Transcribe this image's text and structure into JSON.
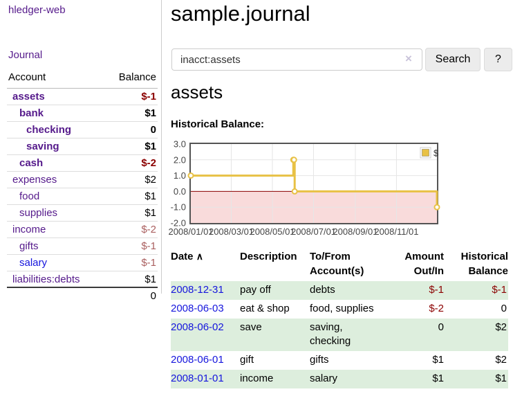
{
  "colors": {
    "brand_link": "#551a8b",
    "link_blue": "#1515dd",
    "negative_strong": "#8b0000",
    "negative_soft": "#aa5f5f",
    "row_shade": "#ddeedd",
    "chart_line": "#e8c145",
    "chart_zero_line": "#8b0000",
    "chart_negative_fill": "#f9dbdb",
    "chart_border": "#545454",
    "chart_grid": "#e6e6e6"
  },
  "sidebar": {
    "brand": "hledger-web",
    "journal_link": "Journal",
    "table": {
      "header_account": "Account",
      "header_balance": "Balance",
      "accounts": [
        {
          "name": "assets",
          "balance": "$-1",
          "depth": 0,
          "bold": true,
          "tone": "negative",
          "link": "visited"
        },
        {
          "name": "bank",
          "balance": "$1",
          "depth": 1,
          "bold": true,
          "tone": "plain",
          "link": "visited"
        },
        {
          "name": "checking",
          "balance": "0",
          "depth": 2,
          "bold": true,
          "tone": "plain",
          "link": "visited"
        },
        {
          "name": "saving",
          "balance": "$1",
          "depth": 2,
          "bold": true,
          "tone": "plain",
          "link": "visited"
        },
        {
          "name": "cash",
          "balance": "$-2",
          "depth": 1,
          "bold": true,
          "tone": "negative",
          "link": "visited"
        },
        {
          "name": "expenses",
          "balance": "$2",
          "depth": 0,
          "bold": false,
          "tone": "plain",
          "link": "visited"
        },
        {
          "name": "food",
          "balance": "$1",
          "depth": 1,
          "bold": false,
          "tone": "plain",
          "link": "visited"
        },
        {
          "name": "supplies",
          "balance": "$1",
          "depth": 1,
          "bold": false,
          "tone": "plain",
          "link": "visited"
        },
        {
          "name": "income",
          "balance": "$-2",
          "depth": 0,
          "bold": false,
          "tone": "negative",
          "link": "visited"
        },
        {
          "name": "gifts",
          "balance": "$-1",
          "depth": 1,
          "bold": false,
          "tone": "negative",
          "link": "visited"
        },
        {
          "name": "salary",
          "balance": "$-1",
          "depth": 1,
          "bold": false,
          "tone": "negative",
          "link": "unvisited"
        },
        {
          "name": "liabilities:debts",
          "balance": "$1",
          "depth": 0,
          "bold": false,
          "tone": "plain",
          "link": "visited"
        }
      ],
      "total": "0"
    }
  },
  "main": {
    "title": "sample.journal",
    "search": {
      "value": "inacct:assets",
      "clear_icon": "×",
      "button": "Search",
      "help_button": "?"
    },
    "account_heading": "assets",
    "chart_label": "Historical Balance:",
    "register": {
      "headers": {
        "date": "Date",
        "sort_icon": "∧",
        "description": "Description",
        "tofrom_line1": "To/From",
        "tofrom_line2": "Account(s)",
        "amount_line1": "Amount",
        "amount_line2": "Out/In",
        "balance_line1": "Historical",
        "balance_line2": "Balance"
      },
      "rows": [
        {
          "date": "2008-12-31",
          "description": "pay off",
          "accounts": [
            "debts"
          ],
          "amount": "$-1",
          "balance": "$-1"
        },
        {
          "date": "2008-06-03",
          "description": "eat & shop",
          "accounts": [
            "food, supplies"
          ],
          "amount": "$-2",
          "balance": "0"
        },
        {
          "date": "2008-06-02",
          "description": "save",
          "accounts": [
            "saving,",
            "checking"
          ],
          "amount": "0",
          "balance": "$2"
        },
        {
          "date": "2008-06-01",
          "description": "gift",
          "accounts": [
            "gifts"
          ],
          "amount": "$1",
          "balance": "$2"
        },
        {
          "date": "2008-01-01",
          "description": "income",
          "accounts": [
            "salary"
          ],
          "amount": "$1",
          "balance": "$1"
        }
      ]
    }
  },
  "chart_data": {
    "type": "line",
    "title": "Historical Balance:",
    "step": true,
    "xlabel": "",
    "ylabel": "",
    "ylim": [
      -2.0,
      3.0
    ],
    "x_range_days": [
      0,
      365
    ],
    "y_ticks": [
      "3.0",
      "2.0",
      "1.0",
      "0.0",
      "-1.0",
      "-2.0"
    ],
    "x_ticks": [
      {
        "label": "2008/01/01",
        "day": 0
      },
      {
        "label": "2008/03/01",
        "day": 60
      },
      {
        "label": "2008/05/01",
        "day": 121
      },
      {
        "label": "2008/07/01",
        "day": 182
      },
      {
        "label": "2008/09/01",
        "day": 244
      },
      {
        "label": "2008/11/01",
        "day": 305
      }
    ],
    "grid": true,
    "legend": {
      "position": "top-right",
      "entries": [
        {
          "label": "$",
          "color": "#e8c145"
        }
      ]
    },
    "series": [
      {
        "name": "$",
        "color": "#e8c145",
        "points": [
          {
            "date": "2008-01-01",
            "day": 0,
            "value": 1.0
          },
          {
            "date": "2008-06-01",
            "day": 152,
            "value": 2.0
          },
          {
            "date": "2008-06-02",
            "day": 153,
            "value": 2.0
          },
          {
            "date": "2008-06-03",
            "day": 154,
            "value": 0.0
          },
          {
            "date": "2008-12-31",
            "day": 365,
            "value": -1.0
          }
        ]
      }
    ],
    "zero_line": true,
    "negative_region_shaded": true
  }
}
